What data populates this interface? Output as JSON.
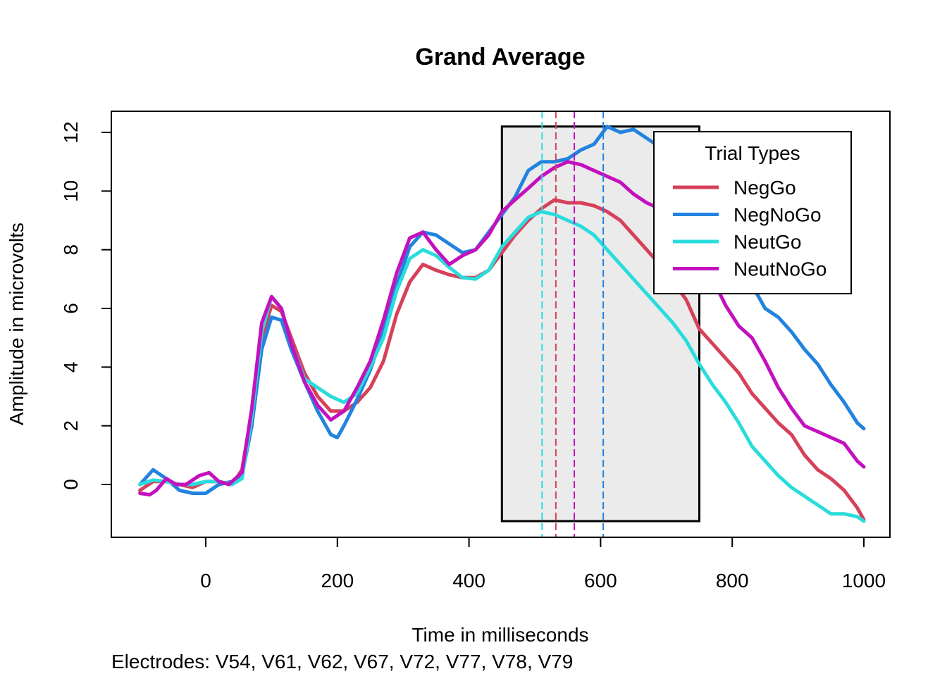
{
  "chart_data": {
    "type": "line",
    "title": "Grand Average",
    "xlabel": "Time in milliseconds",
    "ylabel": "Amplitude in microvolts",
    "caption": "Electrodes: V54, V61, V62, V67, V72, V77, V78, V79",
    "xlim": [
      -100,
      1000
    ],
    "ylim": [
      -1.3,
      12.3
    ],
    "x_ticks": [
      0,
      200,
      400,
      600,
      800,
      1000
    ],
    "y_ticks": [
      0,
      2,
      4,
      6,
      8,
      10,
      12
    ],
    "grid": false,
    "legend": {
      "title": "Trial Types",
      "position": "top-right"
    },
    "measurement_window": {
      "x_start": 450,
      "x_end": 750,
      "y_min": -1.25,
      "y_max": 12.2
    },
    "series": [
      {
        "name": "NegGo",
        "color": "#D6415A",
        "peak_latency": 532,
        "points": [
          [
            -100,
            -0.2
          ],
          [
            -80,
            0.1
          ],
          [
            -60,
            0.1
          ],
          [
            -40,
            0.0
          ],
          [
            -20,
            -0.1
          ],
          [
            0,
            0.1
          ],
          [
            20,
            0.1
          ],
          [
            40,
            0.0
          ],
          [
            55,
            0.5
          ],
          [
            70,
            2.5
          ],
          [
            85,
            5.0
          ],
          [
            100,
            6.1
          ],
          [
            115,
            5.9
          ],
          [
            130,
            5.0
          ],
          [
            150,
            3.8
          ],
          [
            170,
            3.0
          ],
          [
            190,
            2.5
          ],
          [
            210,
            2.5
          ],
          [
            230,
            2.8
          ],
          [
            250,
            3.3
          ],
          [
            270,
            4.2
          ],
          [
            290,
            5.8
          ],
          [
            310,
            6.9
          ],
          [
            330,
            7.5
          ],
          [
            350,
            7.3
          ],
          [
            370,
            7.15
          ],
          [
            390,
            7.05
          ],
          [
            410,
            7.05
          ],
          [
            430,
            7.3
          ],
          [
            450,
            7.9
          ],
          [
            470,
            8.5
          ],
          [
            490,
            9.0
          ],
          [
            510,
            9.4
          ],
          [
            530,
            9.7
          ],
          [
            550,
            9.6
          ],
          [
            570,
            9.6
          ],
          [
            590,
            9.5
          ],
          [
            610,
            9.3
          ],
          [
            630,
            9.0
          ],
          [
            650,
            8.5
          ],
          [
            670,
            8.0
          ],
          [
            690,
            7.5
          ],
          [
            710,
            6.9
          ],
          [
            730,
            6.3
          ],
          [
            750,
            5.3
          ],
          [
            770,
            4.8
          ],
          [
            790,
            4.3
          ],
          [
            810,
            3.8
          ],
          [
            830,
            3.1
          ],
          [
            850,
            2.6
          ],
          [
            870,
            2.1
          ],
          [
            890,
            1.7
          ],
          [
            910,
            1.0
          ],
          [
            930,
            0.5
          ],
          [
            950,
            0.2
          ],
          [
            970,
            -0.2
          ],
          [
            990,
            -0.8
          ],
          [
            1000,
            -1.2
          ]
        ]
      },
      {
        "name": "NegNoGo",
        "color": "#2283DE",
        "peak_latency": 604,
        "points": [
          [
            -100,
            0.0
          ],
          [
            -80,
            0.5
          ],
          [
            -60,
            0.2
          ],
          [
            -40,
            -0.2
          ],
          [
            -20,
            -0.3
          ],
          [
            0,
            -0.3
          ],
          [
            20,
            0.0
          ],
          [
            40,
            0.1
          ],
          [
            55,
            0.3
          ],
          [
            70,
            2.0
          ],
          [
            85,
            4.6
          ],
          [
            100,
            5.7
          ],
          [
            115,
            5.6
          ],
          [
            130,
            4.6
          ],
          [
            150,
            3.5
          ],
          [
            170,
            2.5
          ],
          [
            190,
            1.7
          ],
          [
            200,
            1.6
          ],
          [
            210,
            2.0
          ],
          [
            230,
            2.9
          ],
          [
            250,
            3.9
          ],
          [
            270,
            5.2
          ],
          [
            290,
            6.8
          ],
          [
            310,
            8.1
          ],
          [
            330,
            8.6
          ],
          [
            350,
            8.5
          ],
          [
            370,
            8.2
          ],
          [
            390,
            7.9
          ],
          [
            410,
            8.0
          ],
          [
            430,
            8.6
          ],
          [
            450,
            9.2
          ],
          [
            470,
            9.8
          ],
          [
            490,
            10.7
          ],
          [
            510,
            11.0
          ],
          [
            530,
            11.0
          ],
          [
            550,
            11.1
          ],
          [
            570,
            11.4
          ],
          [
            590,
            11.6
          ],
          [
            610,
            12.2
          ],
          [
            630,
            12.0
          ],
          [
            650,
            12.1
          ],
          [
            670,
            11.8
          ],
          [
            690,
            11.5
          ],
          [
            710,
            11.2
          ],
          [
            730,
            10.8
          ],
          [
            750,
            10.3
          ],
          [
            770,
            9.8
          ],
          [
            790,
            9.0
          ],
          [
            810,
            8.0
          ],
          [
            830,
            6.8
          ],
          [
            850,
            6.0
          ],
          [
            870,
            5.7
          ],
          [
            890,
            5.2
          ],
          [
            910,
            4.6
          ],
          [
            930,
            4.1
          ],
          [
            950,
            3.4
          ],
          [
            970,
            2.8
          ],
          [
            990,
            2.1
          ],
          [
            1000,
            1.9
          ]
        ]
      },
      {
        "name": "NeutGo",
        "color": "#2ADCDC",
        "peak_latency": 511,
        "points": [
          [
            -100,
            0.0
          ],
          [
            -80,
            0.15
          ],
          [
            -60,
            0.1
          ],
          [
            -40,
            0.0
          ],
          [
            -20,
            0.0
          ],
          [
            0,
            0.1
          ],
          [
            20,
            0.1
          ],
          [
            40,
            0.0
          ],
          [
            55,
            0.2
          ],
          [
            70,
            2.3
          ],
          [
            85,
            5.2
          ],
          [
            100,
            6.4
          ],
          [
            115,
            6.0
          ],
          [
            130,
            4.8
          ],
          [
            150,
            3.6
          ],
          [
            170,
            3.3
          ],
          [
            190,
            3.0
          ],
          [
            210,
            2.8
          ],
          [
            230,
            3.1
          ],
          [
            250,
            4.0
          ],
          [
            270,
            5.0
          ],
          [
            290,
            6.6
          ],
          [
            310,
            7.7
          ],
          [
            330,
            8.0
          ],
          [
            350,
            7.8
          ],
          [
            370,
            7.4
          ],
          [
            390,
            7.05
          ],
          [
            410,
            7.0
          ],
          [
            430,
            7.3
          ],
          [
            450,
            8.1
          ],
          [
            470,
            8.6
          ],
          [
            490,
            9.1
          ],
          [
            510,
            9.3
          ],
          [
            530,
            9.2
          ],
          [
            550,
            9.0
          ],
          [
            570,
            8.8
          ],
          [
            590,
            8.5
          ],
          [
            610,
            8.0
          ],
          [
            630,
            7.5
          ],
          [
            650,
            7.0
          ],
          [
            670,
            6.5
          ],
          [
            690,
            6.0
          ],
          [
            710,
            5.5
          ],
          [
            730,
            4.9
          ],
          [
            750,
            4.1
          ],
          [
            770,
            3.4
          ],
          [
            790,
            2.8
          ],
          [
            810,
            2.1
          ],
          [
            830,
            1.3
          ],
          [
            850,
            0.8
          ],
          [
            870,
            0.3
          ],
          [
            890,
            -0.1
          ],
          [
            910,
            -0.4
          ],
          [
            930,
            -0.7
          ],
          [
            950,
            -1.0
          ],
          [
            970,
            -1.0
          ],
          [
            990,
            -1.1
          ],
          [
            1000,
            -1.25
          ]
        ]
      },
      {
        "name": "NeutNoGo",
        "color": "#C411BE",
        "peak_latency": 560,
        "points": [
          [
            -100,
            -0.3
          ],
          [
            -85,
            -0.35
          ],
          [
            -75,
            -0.2
          ],
          [
            -60,
            0.2
          ],
          [
            -45,
            0.0
          ],
          [
            -30,
            0.0
          ],
          [
            -10,
            0.3
          ],
          [
            5,
            0.4
          ],
          [
            20,
            0.1
          ],
          [
            35,
            0.0
          ],
          [
            55,
            0.4
          ],
          [
            70,
            2.6
          ],
          [
            85,
            5.5
          ],
          [
            100,
            6.4
          ],
          [
            115,
            6.0
          ],
          [
            130,
            4.8
          ],
          [
            150,
            3.5
          ],
          [
            170,
            2.7
          ],
          [
            190,
            2.2
          ],
          [
            210,
            2.5
          ],
          [
            230,
            3.3
          ],
          [
            250,
            4.2
          ],
          [
            270,
            5.6
          ],
          [
            290,
            7.2
          ],
          [
            310,
            8.4
          ],
          [
            330,
            8.6
          ],
          [
            350,
            8.0
          ],
          [
            370,
            7.5
          ],
          [
            390,
            7.8
          ],
          [
            410,
            8.0
          ],
          [
            430,
            8.5
          ],
          [
            450,
            9.3
          ],
          [
            470,
            9.7
          ],
          [
            490,
            10.1
          ],
          [
            510,
            10.5
          ],
          [
            530,
            10.8
          ],
          [
            550,
            11.0
          ],
          [
            570,
            10.9
          ],
          [
            590,
            10.7
          ],
          [
            610,
            10.5
          ],
          [
            630,
            10.3
          ],
          [
            650,
            9.9
          ],
          [
            670,
            9.6
          ],
          [
            690,
            9.4
          ],
          [
            710,
            9.1
          ],
          [
            730,
            8.5
          ],
          [
            750,
            7.8
          ],
          [
            770,
            7.0
          ],
          [
            790,
            6.1
          ],
          [
            810,
            5.4
          ],
          [
            830,
            5.0
          ],
          [
            850,
            4.2
          ],
          [
            870,
            3.3
          ],
          [
            890,
            2.6
          ],
          [
            910,
            2.0
          ],
          [
            930,
            1.8
          ],
          [
            950,
            1.6
          ],
          [
            970,
            1.4
          ],
          [
            990,
            0.8
          ],
          [
            1000,
            0.6
          ]
        ]
      }
    ]
  }
}
